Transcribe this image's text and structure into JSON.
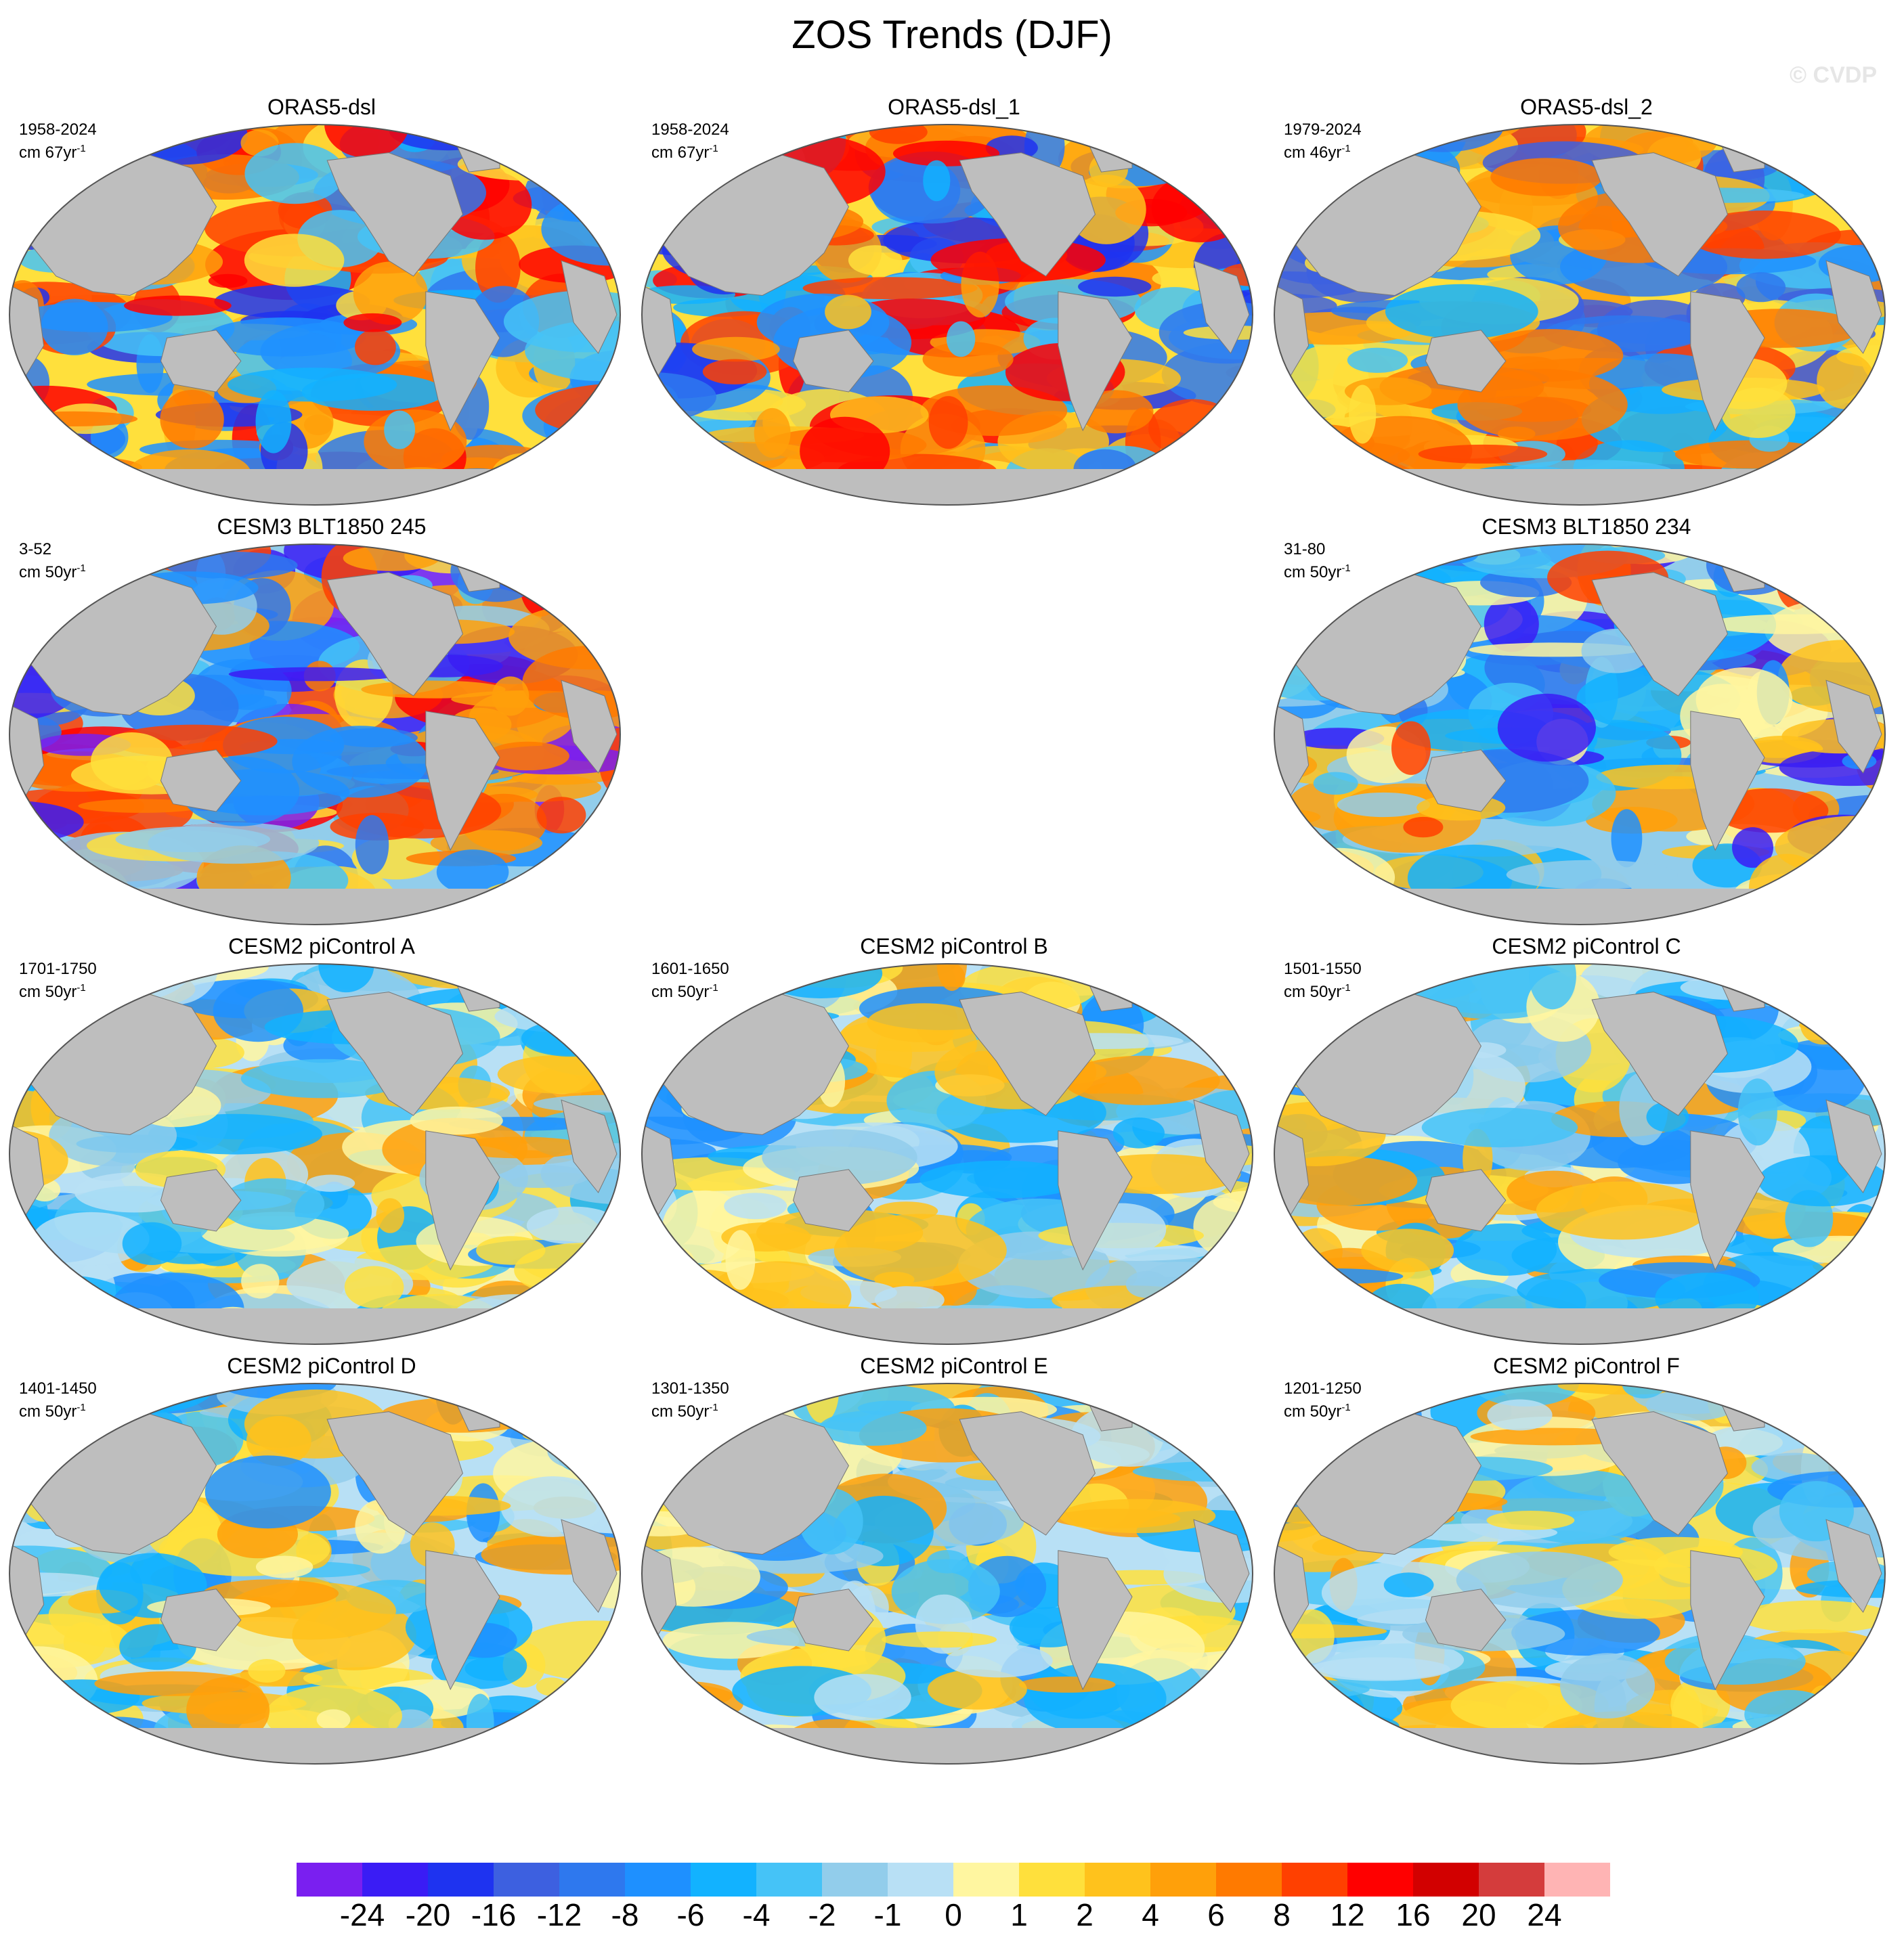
{
  "title": "ZOS Trends (DJF)",
  "watermark": "© CVDP",
  "panels": [
    {
      "title": "ORAS5-dsl",
      "years": "1958-2024",
      "units": "cm 67yr",
      "exp": "-1",
      "regime": "strong"
    },
    {
      "title": "ORAS5-dsl_1",
      "years": "1958-2024",
      "units": "cm 67yr",
      "exp": "-1",
      "regime": "strong"
    },
    {
      "title": "ORAS5-dsl_2",
      "years": "1979-2024",
      "units": "cm 46yr",
      "exp": "-1",
      "regime": "strong2"
    },
    {
      "title": "CESM3 BLT1850 245",
      "years": "3-52",
      "units": "cm 50yr",
      "exp": "-1",
      "regime": "mixed"
    },
    {
      "title": "CESM3 BLT1850 234",
      "years": "31-80",
      "units": "cm 50yr",
      "exp": "-1",
      "regime": "blue"
    },
    {
      "title": "CESM2 piControl A",
      "years": "1701-1750",
      "units": "cm 50yr",
      "exp": "-1",
      "regime": "weak"
    },
    {
      "title": "CESM2 piControl B",
      "years": "1601-1650",
      "units": "cm 50yr",
      "exp": "-1",
      "regime": "weak"
    },
    {
      "title": "CESM2 piControl C",
      "years": "1501-1550",
      "units": "cm 50yr",
      "exp": "-1",
      "regime": "weak"
    },
    {
      "title": "CESM2 piControl D",
      "years": "1401-1450",
      "units": "cm 50yr",
      "exp": "-1",
      "regime": "weak"
    },
    {
      "title": "CESM2 piControl E",
      "years": "1301-1350",
      "units": "cm 50yr",
      "exp": "-1",
      "regime": "weak"
    },
    {
      "title": "CESM2 piControl F",
      "years": "1201-1250",
      "units": "cm 50yr",
      "exp": "-1",
      "regime": "weak"
    }
  ],
  "colorbar": {
    "colors": [
      "#7a1ff0",
      "#3a1cf5",
      "#1e33f0",
      "#3d60e0",
      "#2e78ee",
      "#1e90ff",
      "#12b2ff",
      "#45c3f7",
      "#92cdeb",
      "#b8e0f5",
      "#fff6a0",
      "#ffe03c",
      "#ffc21c",
      "#ffa00a",
      "#ff7a00",
      "#ff4000",
      "#ff0000",
      "#d20000",
      "#d43c3c",
      "#ffb4b4"
    ],
    "labels": [
      "-24",
      "-20",
      "-16",
      "-12",
      "-8",
      "-6",
      "-4",
      "-2",
      "-1",
      "0",
      "1",
      "2",
      "4",
      "6",
      "8",
      "12",
      "16",
      "20",
      "24"
    ]
  },
  "colors": {
    "land": "#bebebe",
    "outline": "#555555"
  }
}
